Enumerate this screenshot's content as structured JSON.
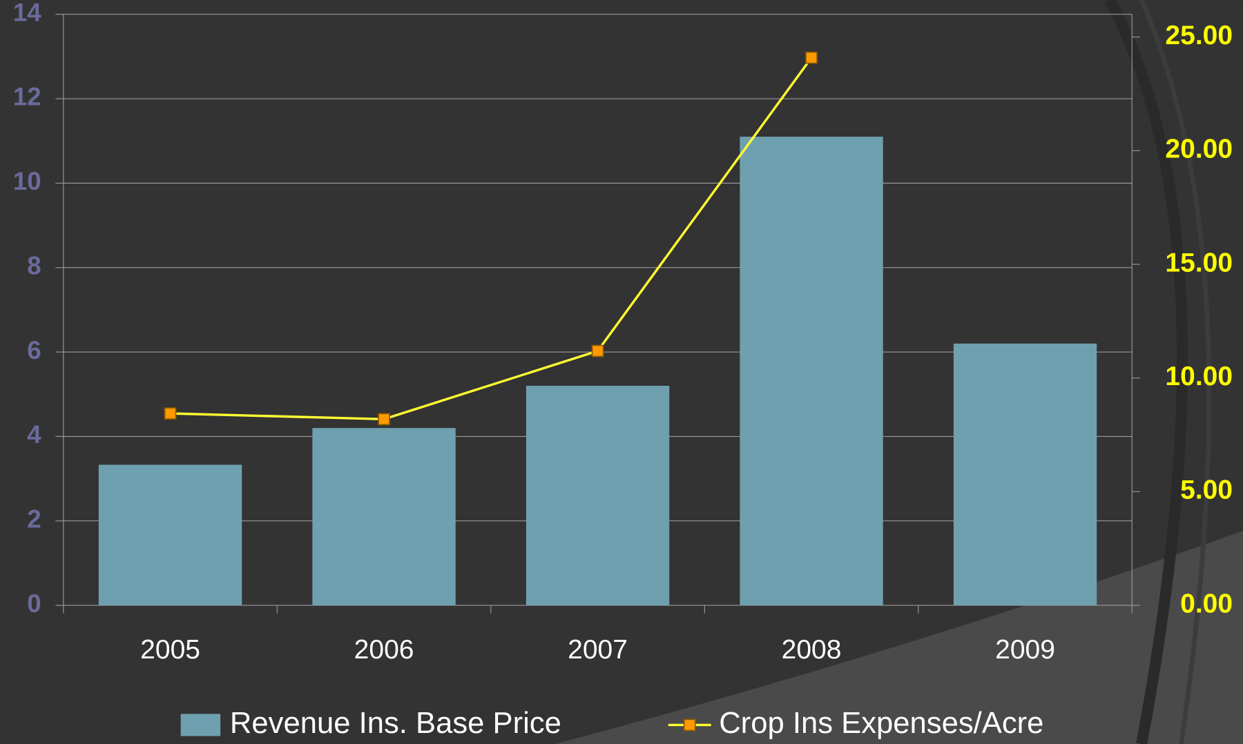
{
  "chart_data": {
    "type": "bar_line",
    "categories": [
      "2005",
      "2006",
      "2007",
      "2008",
      "2009"
    ],
    "series": [
      {
        "name": "Revenue Ins. Base Price",
        "type": "bar",
        "color": "#6fa0b0",
        "values": [
          3.33,
          4.2,
          5.2,
          11.1,
          6.2
        ]
      },
      {
        "name": "Crop Ins Expenses/Acre",
        "type": "line",
        "axis": "y2",
        "color": "#ffff33",
        "marker_color": "#ff9900",
        "values": [
          8.44,
          8.19,
          11.19,
          24.09,
          null
        ]
      }
    ],
    "ylim": [
      0,
      14
    ],
    "yticks": [
      0,
      2,
      4,
      6,
      8,
      10,
      12,
      14
    ],
    "y2lim": [
      0,
      26
    ],
    "y2ticks": [
      {
        "value": 0,
        "label": "0.00"
      },
      {
        "value": 5,
        "label": "5.00"
      },
      {
        "value": 10,
        "label": "10.00"
      },
      {
        "value": 15,
        "label": "15.00"
      },
      {
        "value": 20,
        "label": "20.00"
      },
      {
        "value": 25,
        "label": "25.00"
      }
    ],
    "grid": true,
    "legend": "bottom"
  }
}
